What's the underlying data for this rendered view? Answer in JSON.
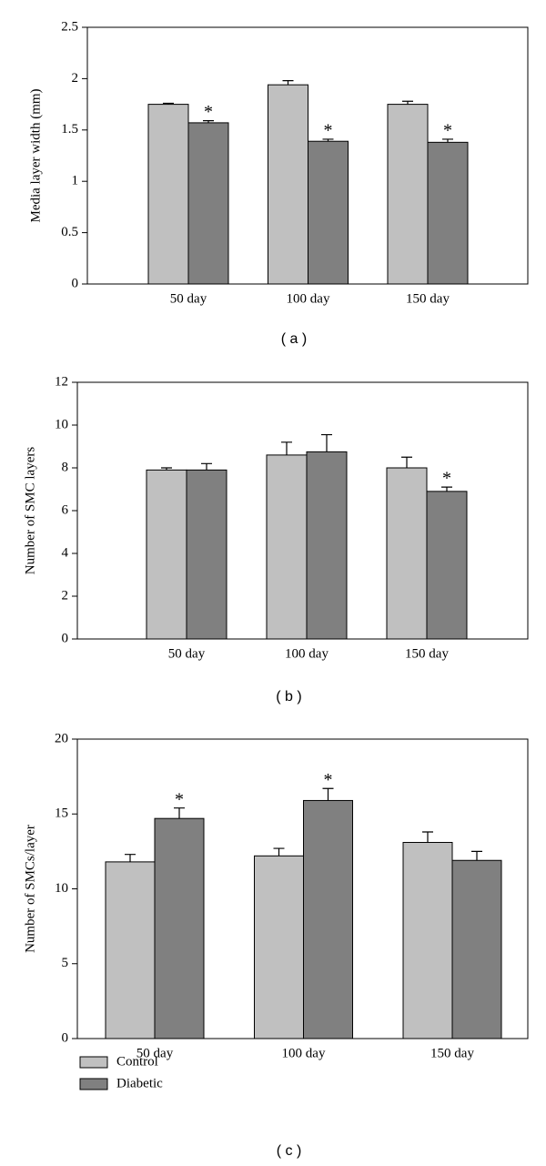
{
  "chart_data": [
    {
      "type": "bar",
      "caption": "( a )",
      "y_label": "Media layer width (mm)",
      "categories": [
        "50 day",
        "100 day",
        "150 day"
      ],
      "series": [
        {
          "name": "Control",
          "color": "#c0c0c0",
          "values": [
            1.75,
            1.94,
            1.75
          ],
          "errors": [
            0.01,
            0.04,
            0.03
          ],
          "significance": [
            null,
            null,
            null
          ]
        },
        {
          "name": "Diabetic",
          "color": "#808080",
          "values": [
            1.57,
            1.39,
            1.38
          ],
          "errors": [
            0.02,
            0.02,
            0.03
          ],
          "significance": [
            "*",
            "*",
            "*"
          ]
        }
      ],
      "ylim": [
        0,
        2.5
      ],
      "yticks": [
        0,
        0.5,
        1,
        1.5,
        2,
        2.5
      ]
    },
    {
      "type": "bar",
      "caption": "( b )",
      "y_label": "Number of SMC layers",
      "categories": [
        "50 day",
        "100 day",
        "150 day"
      ],
      "series": [
        {
          "name": "Control",
          "color": "#c0c0c0",
          "values": [
            7.9,
            8.6,
            8.0
          ],
          "errors": [
            0.1,
            0.6,
            0.5
          ],
          "significance": [
            null,
            null,
            null
          ]
        },
        {
          "name": "Diabetic",
          "color": "#808080",
          "values": [
            7.9,
            8.75,
            6.9
          ],
          "errors": [
            0.3,
            0.8,
            0.2
          ],
          "significance": [
            null,
            null,
            "*"
          ]
        }
      ],
      "ylim": [
        0,
        12
      ],
      "yticks": [
        0,
        2,
        4,
        6,
        8,
        10,
        12
      ]
    },
    {
      "type": "bar",
      "caption": "( c )",
      "y_label": "Number of SMCs/layer",
      "categories": [
        "50 day",
        "100 day",
        "150 day"
      ],
      "series": [
        {
          "name": "Control",
          "color": "#c0c0c0",
          "values": [
            11.8,
            12.2,
            13.1
          ],
          "errors": [
            0.5,
            0.5,
            0.7
          ],
          "significance": [
            null,
            null,
            null
          ]
        },
        {
          "name": "Diabetic",
          "color": "#808080",
          "values": [
            14.7,
            15.9,
            11.9
          ],
          "errors": [
            0.7,
            0.8,
            0.6
          ],
          "significance": [
            "*",
            "*",
            null
          ]
        }
      ],
      "ylim": [
        0,
        20
      ],
      "yticks": [
        0,
        5,
        10,
        15,
        20
      ],
      "legend": "bottom-left"
    }
  ]
}
